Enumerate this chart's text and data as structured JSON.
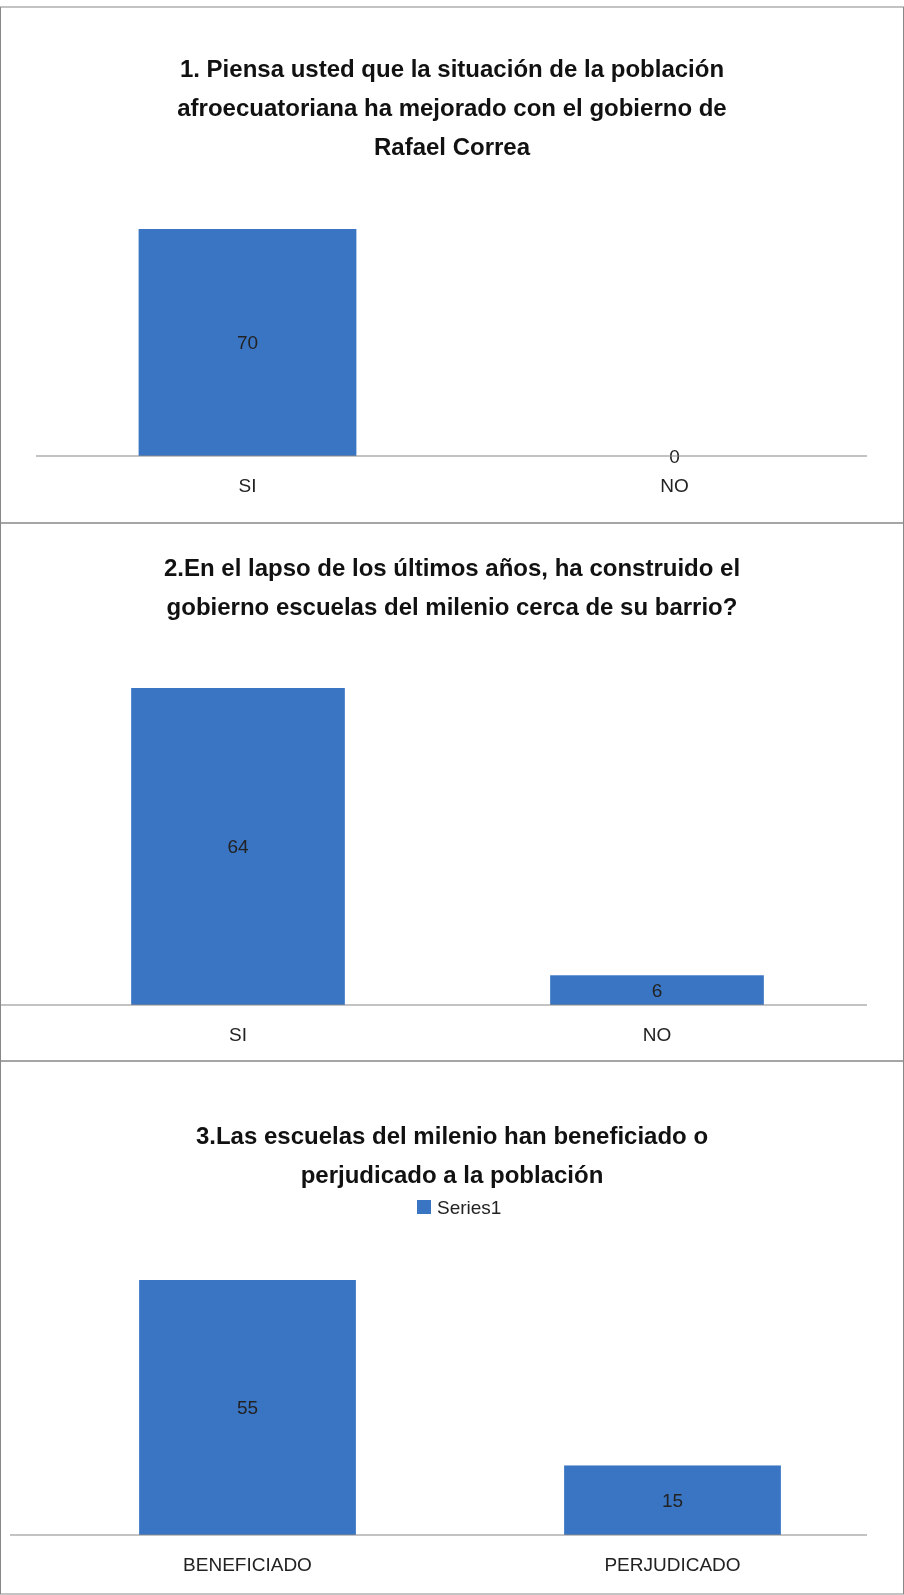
{
  "chart_data": [
    {
      "type": "bar",
      "title": "1. Piensa usted que la situación de la población afroecuatoriana ha mejorado con el gobierno de Rafael Correa",
      "categories": [
        "SI",
        "NO"
      ],
      "series": [
        {
          "color": "#3a75c4",
          "values": [
            70,
            0
          ]
        }
      ],
      "data_labels": true
    },
    {
      "type": "bar",
      "title": "2.En el lapso de los últimos años, ha construido el gobierno escuelas del milenio cerca de su barrio?",
      "categories": [
        "SI",
        "NO"
      ],
      "series": [
        {
          "color": "#3a75c4",
          "values": [
            64,
            6
          ]
        }
      ],
      "data_labels": true
    },
    {
      "type": "bar",
      "title": "3.Las escuelas del milenio han beneficiado o perjudicado a la población",
      "categories": [
        "BENEFICIADO",
        "PERJUDICADO"
      ],
      "series": [
        {
          "name": "Series1",
          "color": "#3a75c4",
          "values": [
            55,
            15
          ]
        }
      ],
      "data_labels": true,
      "legend": "top"
    }
  ]
}
